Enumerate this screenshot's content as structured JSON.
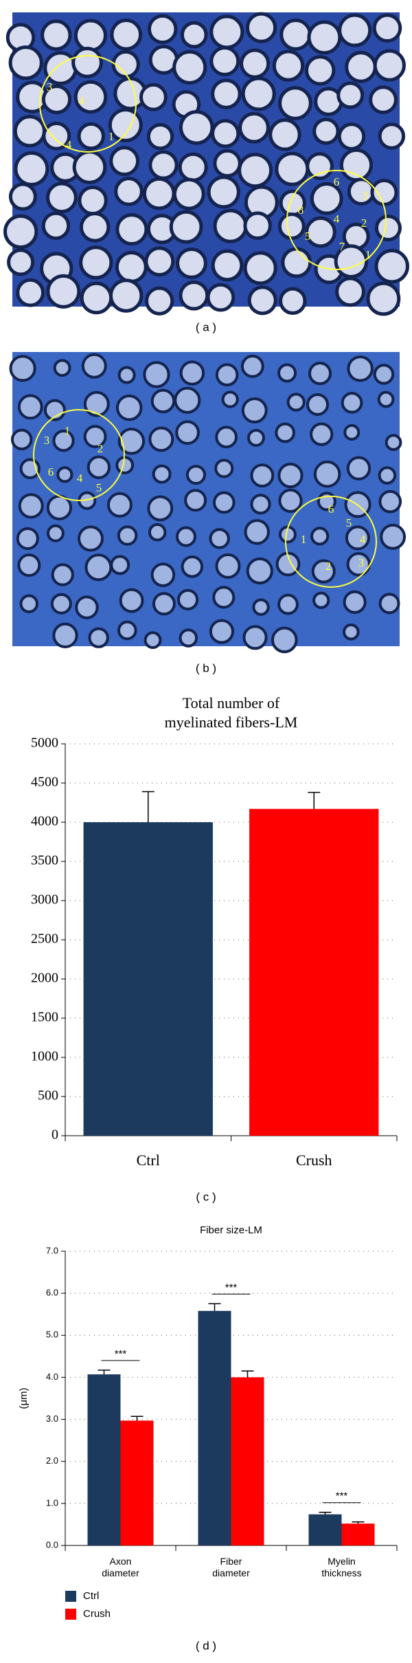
{
  "figure_panels": [
    {
      "label": "( a )",
      "annotations": [
        "4",
        "3",
        "4",
        "1",
        "6",
        "3",
        "8",
        "4",
        "2",
        "5",
        "7",
        "1"
      ]
    },
    {
      "label": "( b )",
      "annotations": [
        "3",
        "1",
        "2",
        "6",
        "4",
        "5",
        "6",
        "5",
        "1",
        "4",
        "2",
        "3"
      ]
    }
  ],
  "chart_data": [
    {
      "type": "bar",
      "panel_label": "( c )",
      "title": [
        "Total number of",
        "myelinated fibers-LM"
      ],
      "categories": [
        "Ctrl",
        "Crush"
      ],
      "values": [
        4000,
        4170
      ],
      "errors": [
        390,
        210
      ],
      "colors": [
        "#1b3a5e",
        "#ff0000"
      ],
      "ylim": [
        0,
        5000
      ],
      "yticks": [
        0,
        500,
        1000,
        1500,
        2000,
        2500,
        3000,
        3500,
        4000,
        4500,
        5000
      ],
      "grid": true
    },
    {
      "type": "grouped_bar",
      "panel_label": "( d )",
      "title": "Fiber size-LM",
      "ylabel": "(μm)",
      "categories": [
        "Axon diameter",
        "Fiber diameter",
        "Myelin thickness"
      ],
      "series": [
        {
          "name": "Ctrl",
          "color": "#1b3a5e",
          "values": [
            4.07,
            5.58,
            0.74
          ],
          "errors": [
            0.1,
            0.17,
            0.05
          ]
        },
        {
          "name": "Crush",
          "color": "#ff0000",
          "values": [
            2.97,
            4.0,
            0.52
          ],
          "errors": [
            0.1,
            0.15,
            0.04
          ]
        }
      ],
      "annotations": [
        "***",
        "***",
        "***"
      ],
      "ylim": [
        0,
        7
      ],
      "yticks": [
        {
          "value": 0,
          "label": "0.0"
        },
        {
          "value": 1,
          "label": "1.0"
        },
        {
          "value": 2,
          "label": "2.0"
        },
        {
          "value": 3,
          "label": "3.0"
        },
        {
          "value": 4,
          "label": "4.0"
        },
        {
          "value": 5,
          "label": "5.0"
        },
        {
          "value": 6,
          "label": "6.0"
        },
        {
          "value": 7,
          "label": "7.0"
        }
      ],
      "grid": true,
      "legend": "bottom-left"
    }
  ]
}
